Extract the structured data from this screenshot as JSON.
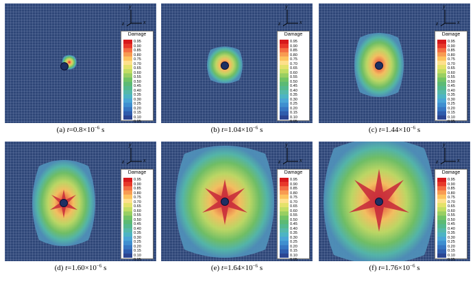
{
  "legend": {
    "title": "Damage",
    "levels": [
      "0.95",
      "0.90",
      "0.85",
      "0.80",
      "0.75",
      "0.70",
      "0.65",
      "0.60",
      "0.55",
      "0.50",
      "0.45",
      "0.40",
      "0.35",
      "0.30",
      "0.25",
      "0.20",
      "0.15",
      "0.10",
      "0.05"
    ],
    "colors": [
      "#d7191c",
      "#e8382a",
      "#f46d43",
      "#f89b52",
      "#fdc35f",
      "#fee08b",
      "#e4e26a",
      "#c2dd63",
      "#99cf62",
      "#72c364",
      "#5cba74",
      "#54b98e",
      "#55b9aa",
      "#4db4c4",
      "#4aa5d6",
      "#3f8fd0",
      "#3676c2",
      "#2f5dad",
      "#2b4592"
    ]
  },
  "axes": {
    "y": "y",
    "z": "z",
    "x": "x"
  },
  "captions": [
    {
      "label": "(a) ",
      "var": "t",
      "value": "=0.8×10",
      "exp": "−6",
      "unit": " s"
    },
    {
      "label": "(b) ",
      "var": "t",
      "value": "=1.04×10",
      "exp": "−6",
      "unit": " s"
    },
    {
      "label": "(c) ",
      "var": "t",
      "value": "=1.44×10",
      "exp": "−6",
      "unit": " s"
    },
    {
      "label": "(d) ",
      "var": "t",
      "value": "=1.60×10",
      "exp": "−6",
      "unit": " s"
    },
    {
      "label": "(e) ",
      "var": "t",
      "value": "=1.64×10",
      "exp": "−6",
      "unit": " s"
    },
    {
      "label": "(f) ",
      "var": "t",
      "value": "=1.76×10",
      "exp": "−6",
      "unit": " s"
    }
  ],
  "colors": {
    "background_mesh": "#2f4778",
    "borehole": "#1e2f63"
  }
}
